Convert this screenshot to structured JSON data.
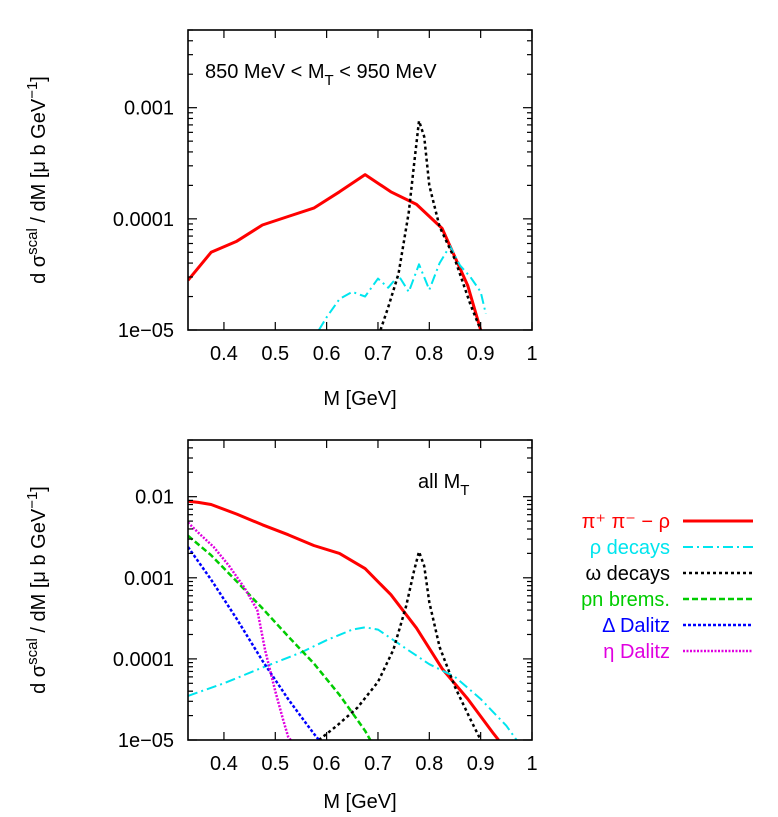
{
  "chart_data": [
    {
      "type": "line",
      "annotation": {
        "pre": "850 MeV < M",
        "sub": "T",
        "post": " < 950 MeV"
      },
      "xlabel": "M [GeV]",
      "ylabel": {
        "pre": "d σ",
        "sup": "scal",
        "mid": " / dM  [μ b GeV",
        "sup2": "−1",
        "post": "]"
      },
      "xlim": [
        0.33,
        1.0
      ],
      "ylim": [
        1e-05,
        0.005
      ],
      "yscale": "log",
      "x_ticks": [
        "0.4",
        "0.5",
        "0.6",
        "0.7",
        "0.8",
        "0.9",
        "1"
      ],
      "x_tick_values": [
        0.4,
        0.5,
        0.6,
        0.7,
        0.8,
        0.9,
        1.0
      ],
      "y_ticks": [
        "1e−05",
        "0.0001",
        "0.001"
      ],
      "y_tick_values": [
        1e-05,
        0.0001,
        0.001
      ],
      "series": [
        {
          "key": "pipi",
          "color": "#ff0000",
          "dash": "",
          "width": 3,
          "x": [
            0.33,
            0.375,
            0.425,
            0.475,
            0.525,
            0.575,
            0.625,
            0.675,
            0.725,
            0.775,
            0.825,
            0.875,
            0.9
          ],
          "y": [
            2.8e-05,
            5e-05,
            6.3e-05,
            8.8e-05,
            0.000105,
            0.000125,
            0.000175,
            0.00025,
            0.000175,
            0.000135,
            8.2e-05,
            2.5e-05,
            1e-05
          ]
        },
        {
          "key": "rho",
          "color": "#00e5ee",
          "dash": "10,4,2,4",
          "width": 2,
          "x": [
            0.585,
            0.6,
            0.625,
            0.65,
            0.675,
            0.7,
            0.72,
            0.74,
            0.76,
            0.78,
            0.8,
            0.82,
            0.84,
            0.86,
            0.88,
            0.9,
            0.91
          ],
          "y": [
            1e-05,
            1.3e-05,
            1.9e-05,
            2.2e-05,
            2e-05,
            2.9e-05,
            2.4e-05,
            3.1e-05,
            2.2e-05,
            3.9e-05,
            2.3e-05,
            4e-05,
            5.7e-05,
            3.8e-05,
            3e-05,
            2.2e-05,
            1.4e-05
          ]
        },
        {
          "key": "omega",
          "color": "#000000",
          "dash": "3,3",
          "width": 2.5,
          "x": [
            0.705,
            0.72,
            0.74,
            0.76,
            0.77,
            0.78,
            0.79,
            0.8,
            0.82,
            0.85,
            0.88,
            0.9
          ],
          "y": [
            1e-05,
            1.6e-05,
            3.2e-05,
            0.000115,
            0.0003,
            0.00076,
            0.00055,
            0.0002,
            8.5e-05,
            4.3e-05,
            1.7e-05,
            1e-05
          ]
        }
      ]
    },
    {
      "type": "line",
      "annotation": {
        "pre": "all M",
        "sub": "T",
        "post": ""
      },
      "xlabel": "M [GeV]",
      "ylabel": {
        "pre": "d σ",
        "sup": "scal",
        "mid": " / dM  [μ b GeV",
        "sup2": "−1",
        "post": "]"
      },
      "xlim": [
        0.33,
        1.0
      ],
      "ylim": [
        1e-05,
        0.05
      ],
      "yscale": "log",
      "x_ticks": [
        "0.4",
        "0.5",
        "0.6",
        "0.7",
        "0.8",
        "0.9",
        "1"
      ],
      "x_tick_values": [
        0.4,
        0.5,
        0.6,
        0.7,
        0.8,
        0.9,
        1.0
      ],
      "y_ticks": [
        "1e−05",
        "0.0001",
        "0.001",
        "0.01"
      ],
      "y_tick_values": [
        1e-05,
        0.0001,
        0.001,
        0.01
      ],
      "series": [
        {
          "key": "pipi",
          "color": "#ff0000",
          "dash": "",
          "width": 3,
          "x": [
            0.33,
            0.35,
            0.375,
            0.425,
            0.475,
            0.525,
            0.575,
            0.625,
            0.675,
            0.725,
            0.775,
            0.825,
            0.875,
            0.925,
            0.935
          ],
          "y": [
            0.0088,
            0.0085,
            0.008,
            0.0061,
            0.0045,
            0.0034,
            0.0025,
            0.002,
            0.0013,
            0.00062,
            0.00024,
            7.6e-05,
            3.2e-05,
            1.2e-05,
            1e-05
          ]
        },
        {
          "key": "rho",
          "color": "#00e5ee",
          "dash": "10,4,2,4",
          "width": 2,
          "x": [
            0.33,
            0.4,
            0.475,
            0.55,
            0.6,
            0.65,
            0.675,
            0.7,
            0.75,
            0.8,
            0.85,
            0.9,
            0.95,
            0.97
          ],
          "y": [
            3.5e-05,
            5e-05,
            7.8e-05,
            0.00012,
            0.00017,
            0.00023,
            0.000245,
            0.00023,
            0.00014,
            8.6e-05,
            6e-05,
            3.2e-05,
            1.5e-05,
            1e-05
          ]
        },
        {
          "key": "omega",
          "color": "#000000",
          "dash": "3,3",
          "width": 2.5,
          "x": [
            0.585,
            0.62,
            0.66,
            0.7,
            0.73,
            0.755,
            0.77,
            0.78,
            0.79,
            0.8,
            0.82,
            0.85,
            0.88,
            0.9
          ],
          "y": [
            1e-05,
            1.5e-05,
            2.5e-05,
            5.2e-05,
            0.00013,
            0.00045,
            0.0012,
            0.0021,
            0.0014,
            0.0005,
            0.00014,
            4.5e-05,
            1.8e-05,
            1e-05
          ]
        },
        {
          "key": "pn",
          "color": "#00cc00",
          "dash": "6,3",
          "width": 2.5,
          "x": [
            0.33,
            0.375,
            0.425,
            0.475,
            0.525,
            0.575,
            0.625,
            0.675,
            0.685
          ],
          "y": [
            0.0033,
            0.0019,
            0.0009,
            0.00042,
            0.00019,
            8.8e-05,
            3.6e-05,
            1.3e-05,
            1e-05
          ]
        },
        {
          "key": "delta",
          "color": "#0000ff",
          "dash": "3,2",
          "width": 2.5,
          "x": [
            0.33,
            0.375,
            0.425,
            0.475,
            0.525,
            0.56,
            0.575,
            0.585
          ],
          "y": [
            0.0024,
            0.00095,
            0.00031,
            9.5e-05,
            3.2e-05,
            1.6e-05,
            1.2e-05,
            1e-05
          ]
        },
        {
          "key": "eta",
          "color": "#e000e0",
          "dash": "2,1.5",
          "width": 2.5,
          "x": [
            0.33,
            0.35,
            0.38,
            0.41,
            0.44,
            0.465,
            0.48,
            0.5,
            0.515,
            0.525,
            0.53
          ],
          "y": [
            0.0048,
            0.0036,
            0.0024,
            0.0014,
            0.00075,
            0.0004,
            0.00013,
            4e-05,
            1.8e-05,
            1.1e-05,
            1e-05
          ]
        }
      ]
    }
  ],
  "legend": [
    {
      "key": "pipi",
      "label": "π⁺ π⁻ − ρ",
      "color": "#ff0000"
    },
    {
      "key": "rho",
      "label": "ρ decays",
      "color": "#00e5ee"
    },
    {
      "key": "omega",
      "label": "ω decays",
      "color": "#000000"
    },
    {
      "key": "pn",
      "label": "pn brems.",
      "color": "#00cc00"
    },
    {
      "key": "delta",
      "label": "Δ Dalitz",
      "color": "#0000ff"
    },
    {
      "key": "eta",
      "label": "η Dalitz",
      "color": "#e000e0"
    }
  ]
}
